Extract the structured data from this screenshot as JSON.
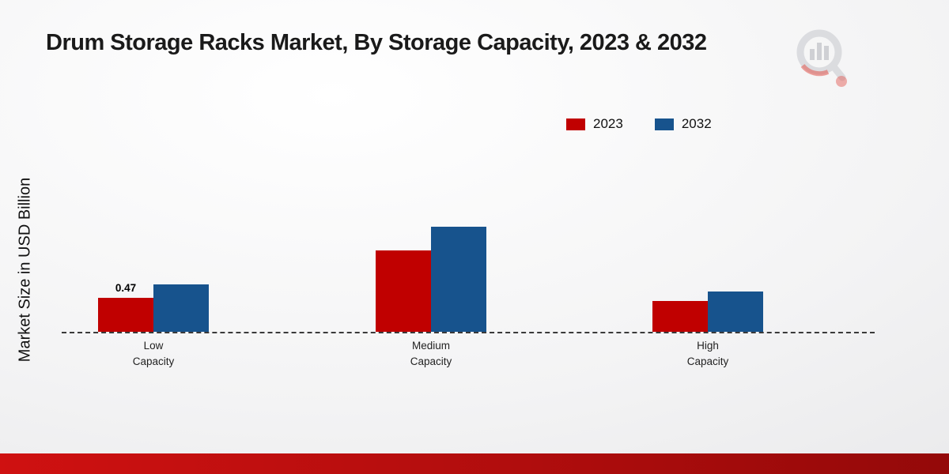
{
  "chart_data": {
    "type": "bar",
    "title": "Drum Storage Racks Market, By Storage Capacity, 2023 & 2032",
    "ylabel": "Market Size in USD Billion",
    "xlabel": "",
    "unit": "USD Billion",
    "categories": [
      [
        "Low",
        "Capacity"
      ],
      [
        "Medium",
        "Capacity"
      ],
      [
        "High",
        "Capacity"
      ]
    ],
    "series": [
      {
        "name": "2023",
        "color": "#c00000",
        "values": [
          0.47,
          1.12,
          0.42
        ],
        "value_labels": [
          "0.47",
          "",
          ""
        ]
      },
      {
        "name": "2032",
        "color": "#17538d",
        "values": [
          0.65,
          1.45,
          0.55
        ],
        "value_labels": [
          "",
          "",
          ""
        ]
      }
    ],
    "ylim": [
      0,
      1.6
    ],
    "grid": false,
    "legend_position": "top-right",
    "baseline_style": "dashed"
  },
  "colors": {
    "bar_2023": "#c00000",
    "bar_2032": "#17538d",
    "footer_left": "#cf1111",
    "footer_right": "#940909"
  }
}
